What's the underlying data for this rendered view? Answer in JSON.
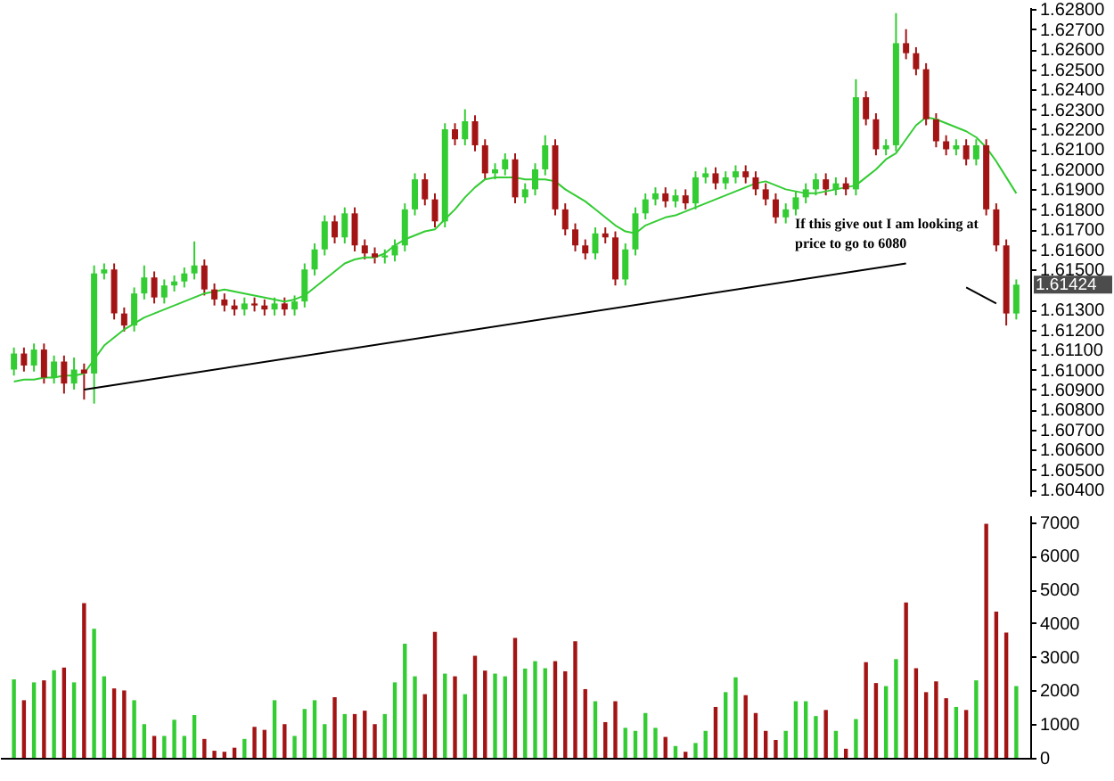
{
  "chart_data": [
    {
      "type": "candlestick",
      "tick_labels": "y",
      "categories": [
        null,
        null,
        null,
        null,
        null,
        null,
        null,
        null,
        null,
        null,
        null,
        null,
        null,
        null,
        null,
        null,
        null,
        null,
        null,
        null,
        null,
        null,
        null,
        null,
        null,
        null,
        null,
        null,
        null,
        null,
        null,
        null,
        null,
        null,
        null,
        null,
        null,
        null,
        null,
        null,
        null,
        null,
        null,
        null,
        null,
        null,
        null,
        null,
        null,
        null,
        null,
        null,
        null,
        null,
        null,
        null,
        null,
        null,
        null,
        null,
        null,
        null,
        null,
        null,
        null,
        null,
        null,
        null,
        null,
        null,
        null,
        null,
        null,
        null,
        null,
        null,
        null,
        null,
        null,
        null,
        null,
        null,
        null,
        null,
        null,
        null,
        null,
        null,
        null,
        null,
        null,
        null,
        null,
        null,
        null,
        null,
        null,
        null,
        null,
        null,
        null
      ],
      "ohlc": [
        [
          1.61,
          1.6111,
          1.6097,
          1.6108
        ],
        [
          1.6108,
          1.6111,
          1.6099,
          1.6102
        ],
        [
          1.6102,
          1.6113,
          1.6099,
          1.611
        ],
        [
          1.611,
          1.6113,
          1.6093,
          1.6096
        ],
        [
          1.6096,
          1.6107,
          1.6093,
          1.6104
        ],
        [
          1.6104,
          1.6107,
          1.6088,
          1.6093
        ],
        [
          1.6093,
          1.6106,
          1.609,
          1.61
        ],
        [
          1.61,
          1.6103,
          1.6085,
          1.6098
        ],
        [
          1.6098,
          1.6152,
          1.6083,
          1.6148
        ],
        [
          1.6148,
          1.6153,
          1.6145,
          1.615
        ],
        [
          1.615,
          1.6153,
          1.6125,
          1.6128
        ],
        [
          1.6128,
          1.6131,
          1.6119,
          1.6122
        ],
        [
          1.6122,
          1.6141,
          1.6119,
          1.6138
        ],
        [
          1.6138,
          1.6152,
          1.6135,
          1.6146
        ],
        [
          1.6146,
          1.6149,
          1.6133,
          1.6136
        ],
        [
          1.6136,
          1.6145,
          1.6133,
          1.6142
        ],
        [
          1.6142,
          1.6147,
          1.6139,
          1.6144
        ],
        [
          1.6144,
          1.6151,
          1.6141,
          1.6148
        ],
        [
          1.6148,
          1.6164,
          1.6145,
          1.6152
        ],
        [
          1.6152,
          1.6155,
          1.6137,
          1.614
        ],
        [
          1.614,
          1.6143,
          1.6132,
          1.6135
        ],
        [
          1.6135,
          1.6138,
          1.6129,
          1.6132
        ],
        [
          1.6132,
          1.6135,
          1.6127,
          1.613
        ],
        [
          1.613,
          1.6136,
          1.6127,
          1.6133
        ],
        [
          1.6133,
          1.6136,
          1.6129,
          1.6132
        ],
        [
          1.6132,
          1.6135,
          1.6127,
          1.613
        ],
        [
          1.613,
          1.6136,
          1.6127,
          1.6133
        ],
        [
          1.6133,
          1.6136,
          1.6127,
          1.613
        ],
        [
          1.613,
          1.6137,
          1.6127,
          1.6134
        ],
        [
          1.6134,
          1.6153,
          1.6131,
          1.615
        ],
        [
          1.615,
          1.6163,
          1.6147,
          1.616
        ],
        [
          1.616,
          1.6177,
          1.6157,
          1.6174
        ],
        [
          1.6174,
          1.6177,
          1.6163,
          1.6166
        ],
        [
          1.6166,
          1.6181,
          1.6163,
          1.6178
        ],
        [
          1.6178,
          1.6181,
          1.6159,
          1.6162
        ],
        [
          1.6162,
          1.6165,
          1.6155,
          1.6158
        ],
        [
          1.6158,
          1.6161,
          1.6153,
          1.6156
        ],
        [
          1.6156,
          1.616,
          1.6153,
          1.6157
        ],
        [
          1.6157,
          1.6165,
          1.6154,
          1.6162
        ],
        [
          1.6162,
          1.6183,
          1.6159,
          1.618
        ],
        [
          1.618,
          1.6198,
          1.6177,
          1.6195
        ],
        [
          1.6195,
          1.6198,
          1.6182,
          1.6185
        ],
        [
          1.6185,
          1.6188,
          1.6171,
          1.6174
        ],
        [
          1.6174,
          1.6223,
          1.6171,
          1.622
        ],
        [
          1.622,
          1.6223,
          1.6212,
          1.6215
        ],
        [
          1.6215,
          1.623,
          1.6212,
          1.6224
        ],
        [
          1.6224,
          1.6227,
          1.6209,
          1.6212
        ],
        [
          1.6212,
          1.6215,
          1.6195,
          1.6198
        ],
        [
          1.6198,
          1.6203,
          1.6195,
          1.62
        ],
        [
          1.62,
          1.6208,
          1.6197,
          1.6205
        ],
        [
          1.6205,
          1.6208,
          1.6183,
          1.6186
        ],
        [
          1.6186,
          1.6193,
          1.6183,
          1.619
        ],
        [
          1.619,
          1.6203,
          1.6187,
          1.62
        ],
        [
          1.62,
          1.6217,
          1.6197,
          1.6212
        ],
        [
          1.6212,
          1.6215,
          1.6177,
          1.618
        ],
        [
          1.618,
          1.6183,
          1.6167,
          1.617
        ],
        [
          1.617,
          1.6173,
          1.6159,
          1.6162
        ],
        [
          1.6162,
          1.6165,
          1.6155,
          1.6158
        ],
        [
          1.6158,
          1.6171,
          1.6155,
          1.6168
        ],
        [
          1.6168,
          1.6171,
          1.6163,
          1.6166
        ],
        [
          1.6166,
          1.6169,
          1.6142,
          1.6145
        ],
        [
          1.6145,
          1.6163,
          1.6142,
          1.616
        ],
        [
          1.616,
          1.6181,
          1.6157,
          1.6178
        ],
        [
          1.6178,
          1.6188,
          1.6175,
          1.6185
        ],
        [
          1.6185,
          1.6191,
          1.6182,
          1.6188
        ],
        [
          1.6188,
          1.6191,
          1.6181,
          1.6184
        ],
        [
          1.6184,
          1.619,
          1.6181,
          1.6187
        ],
        [
          1.6187,
          1.619,
          1.618,
          1.6183
        ],
        [
          1.6183,
          1.6199,
          1.618,
          1.6196
        ],
        [
          1.6196,
          1.6201,
          1.6193,
          1.6198
        ],
        [
          1.6198,
          1.6201,
          1.619,
          1.6193
        ],
        [
          1.6193,
          1.6199,
          1.619,
          1.6196
        ],
        [
          1.6196,
          1.6202,
          1.6193,
          1.6199
        ],
        [
          1.6199,
          1.6202,
          1.6193,
          1.6196
        ],
        [
          1.6196,
          1.6199,
          1.6187,
          1.619
        ],
        [
          1.619,
          1.6193,
          1.6182,
          1.6185
        ],
        [
          1.6185,
          1.6188,
          1.6173,
          1.6176
        ],
        [
          1.6176,
          1.6183,
          1.6173,
          1.618
        ],
        [
          1.618,
          1.6189,
          1.6177,
          1.6186
        ],
        [
          1.6186,
          1.6193,
          1.6183,
          1.619
        ],
        [
          1.619,
          1.6198,
          1.6187,
          1.6195
        ],
        [
          1.6195,
          1.6198,
          1.6187,
          1.619
        ],
        [
          1.619,
          1.6196,
          1.6187,
          1.6193
        ],
        [
          1.6193,
          1.6196,
          1.6187,
          1.619
        ],
        [
          1.619,
          1.6245,
          1.6187,
          1.6236
        ],
        [
          1.6236,
          1.6239,
          1.6222,
          1.6225
        ],
        [
          1.6225,
          1.6228,
          1.6207,
          1.621
        ],
        [
          1.621,
          1.6215,
          1.6207,
          1.6212
        ],
        [
          1.6212,
          1.6278,
          1.6209,
          1.6263
        ],
        [
          1.6263,
          1.627,
          1.6255,
          1.6258
        ],
        [
          1.6258,
          1.6261,
          1.6247,
          1.625
        ],
        [
          1.625,
          1.6253,
          1.6222,
          1.6225
        ],
        [
          1.6225,
          1.6228,
          1.6211,
          1.6214
        ],
        [
          1.6214,
          1.6217,
          1.6207,
          1.621
        ],
        [
          1.621,
          1.6215,
          1.6207,
          1.6212
        ],
        [
          1.6212,
          1.6215,
          1.6202,
          1.6205
        ],
        [
          1.6205,
          1.6215,
          1.6202,
          1.6212
        ],
        [
          1.6212,
          1.6215,
          1.6177,
          1.618
        ],
        [
          1.618,
          1.6183,
          1.6159,
          1.6162
        ],
        [
          1.6162,
          1.6165,
          1.6122,
          1.6128
        ],
        [
          1.6128,
          1.6145,
          1.6125,
          1.61424
        ]
      ],
      "colors": [
        "#33cc33",
        "#a31515",
        "#33cc33",
        "#a31515",
        "#33cc33",
        "#a31515",
        "#33cc33",
        "#a31515",
        "#33cc33",
        "#33cc33",
        "#a31515",
        "#a31515",
        "#33cc33",
        "#33cc33",
        "#a31515",
        "#33cc33",
        "#33cc33",
        "#33cc33",
        "#33cc33",
        "#a31515",
        "#a31515",
        "#a31515",
        "#a31515",
        "#33cc33",
        "#a31515",
        "#a31515",
        "#33cc33",
        "#a31515",
        "#33cc33",
        "#33cc33",
        "#33cc33",
        "#33cc33",
        "#a31515",
        "#33cc33",
        "#a31515",
        "#a31515",
        "#a31515",
        "#33cc33",
        "#33cc33",
        "#33cc33",
        "#33cc33",
        "#a31515",
        "#a31515",
        "#33cc33",
        "#a31515",
        "#33cc33",
        "#a31515",
        "#a31515",
        "#33cc33",
        "#33cc33",
        "#a31515",
        "#33cc33",
        "#33cc33",
        "#33cc33",
        "#a31515",
        "#a31515",
        "#a31515",
        "#a31515",
        "#33cc33",
        "#a31515",
        "#a31515",
        "#33cc33",
        "#33cc33",
        "#33cc33",
        "#33cc33",
        "#a31515",
        "#33cc33",
        "#a31515",
        "#33cc33",
        "#33cc33",
        "#a31515",
        "#33cc33",
        "#33cc33",
        "#a31515",
        "#a31515",
        "#a31515",
        "#a31515",
        "#33cc33",
        "#33cc33",
        "#33cc33",
        "#33cc33",
        "#a31515",
        "#33cc33",
        "#a31515",
        "#33cc33",
        "#a31515",
        "#a31515",
        "#33cc33",
        "#33cc33",
        "#a31515",
        "#a31515",
        "#a31515",
        "#a31515",
        "#a31515",
        "#33cc33",
        "#a31515",
        "#33cc33",
        "#a31515",
        "#a31515",
        "#a31515",
        "#33cc33"
      ],
      "series": [
        {
          "type": "line",
          "color": "#33cc33",
          "values": [
            1.6094,
            1.6095,
            1.6095,
            1.6096,
            1.6096,
            1.6097,
            1.6097,
            1.6098,
            1.6105,
            1.6112,
            1.6116,
            1.612,
            1.6123,
            1.6126,
            1.6128,
            1.613,
            1.6132,
            1.6134,
            1.6136,
            1.6138,
            1.6139,
            1.614,
            1.6139,
            1.6138,
            1.6137,
            1.6136,
            1.6135,
            1.6134,
            1.6135,
            1.6137,
            1.6141,
            1.6145,
            1.6149,
            1.6153,
            1.6155,
            1.6156,
            1.6156,
            1.6158,
            1.6162,
            1.6165,
            1.6167,
            1.6169,
            1.617,
            1.6175,
            1.618,
            1.6186,
            1.6191,
            1.6195,
            1.6196,
            1.6196,
            1.6196,
            1.6195,
            1.6195,
            1.6195,
            1.6194,
            1.619,
            1.6187,
            1.6184,
            1.618,
            1.6176,
            1.6172,
            1.6169,
            1.6168,
            1.6172,
            1.6174,
            1.6176,
            1.6177,
            1.6179,
            1.6181,
            1.6183,
            1.6185,
            1.6187,
            1.6189,
            1.6191,
            1.6193,
            1.6194,
            1.6192,
            1.619,
            1.6189,
            1.6188,
            1.6188,
            1.6189,
            1.619,
            1.6191,
            1.6192,
            1.6196,
            1.62,
            1.6205,
            1.6208,
            1.6215,
            1.6222,
            1.6226,
            1.6225,
            1.6223,
            1.6221,
            1.6219,
            1.6216,
            1.6211,
            1.6204,
            1.6196,
            1.6188
          ]
        },
        {
          "type": "line",
          "color": "#000000",
          "values": [
            null,
            null,
            null,
            null,
            null,
            null,
            null,
            1.609,
            null,
            null,
            null,
            null,
            null,
            null,
            null,
            null,
            null,
            null,
            null,
            null,
            null,
            null,
            null,
            null,
            null,
            null,
            null,
            null,
            null,
            null,
            null,
            null,
            null,
            null,
            null,
            null,
            null,
            null,
            null,
            null,
            null,
            null,
            null,
            null,
            null,
            null,
            null,
            null,
            null,
            null,
            null,
            null,
            null,
            null,
            null,
            null,
            null,
            null,
            null,
            null,
            null,
            null,
            null,
            null,
            null,
            null,
            null,
            null,
            null,
            null,
            null,
            null,
            null,
            null,
            null,
            null,
            null,
            null,
            null,
            null,
            null,
            null,
            null,
            null,
            null,
            null,
            null,
            null,
            null,
            1.6153,
            null,
            null,
            null,
            null,
            null,
            null,
            null,
            null,
            null,
            null,
            null
          ]
        },
        {
          "type": "line",
          "color": "#000000",
          "values": [
            null,
            null,
            null,
            null,
            null,
            null,
            null,
            null,
            null,
            null,
            null,
            null,
            null,
            null,
            null,
            null,
            null,
            null,
            null,
            null,
            null,
            null,
            null,
            null,
            null,
            null,
            null,
            null,
            null,
            null,
            null,
            null,
            null,
            null,
            null,
            null,
            null,
            null,
            null,
            null,
            null,
            null,
            null,
            null,
            null,
            null,
            null,
            null,
            null,
            null,
            null,
            null,
            null,
            null,
            null,
            null,
            null,
            null,
            null,
            null,
            null,
            null,
            null,
            null,
            null,
            null,
            null,
            null,
            null,
            null,
            null,
            null,
            null,
            null,
            null,
            null,
            null,
            null,
            null,
            null,
            null,
            null,
            null,
            null,
            null,
            null,
            null,
            null,
            null,
            null,
            null,
            null,
            null,
            null,
            null,
            1.6141,
            null,
            null,
            1.6133,
            null,
            null
          ]
        }
      ],
      "ylim": [
        1.6037,
        1.6281
      ],
      "yticks": [
        {
          "value": 1.604,
          "label": "1.60400"
        },
        {
          "value": 1.605,
          "label": "1.60500"
        },
        {
          "value": 1.606,
          "label": "1.60600"
        },
        {
          "value": 1.607,
          "label": "1.60700"
        },
        {
          "value": 1.608,
          "label": "1.60800"
        },
        {
          "value": 1.609,
          "label": "1.60900"
        },
        {
          "value": 1.61,
          "label": "1.61000"
        },
        {
          "value": 1.611,
          "label": "1.61100"
        },
        {
          "value": 1.612,
          "label": "1.61200"
        },
        {
          "value": 1.613,
          "label": "1.61300"
        },
        {
          "value": 1.615,
          "label": "1.61500"
        },
        {
          "value": 1.616,
          "label": "1.61600"
        },
        {
          "value": 1.617,
          "label": "1.61700"
        },
        {
          "value": 1.618,
          "label": "1.61800"
        },
        {
          "value": 1.619,
          "label": "1.61900"
        },
        {
          "value": 1.62,
          "label": "1.62000"
        },
        {
          "value": 1.621,
          "label": "1.62100"
        },
        {
          "value": 1.622,
          "label": "1.62200"
        },
        {
          "value": 1.623,
          "label": "1.62300"
        },
        {
          "value": 1.624,
          "label": "1.62400"
        },
        {
          "value": 1.625,
          "label": "1.62500"
        },
        {
          "value": 1.626,
          "label": "1.62600"
        },
        {
          "value": 1.627,
          "label": "1.62700"
        },
        {
          "value": 1.628,
          "label": "1.62800"
        }
      ],
      "annotations": [
        "If this give out I am looking at price to go to 6080",
        "1.61424"
      ]
    },
    {
      "type": "bar",
      "tick_labels": "y",
      "categories": [
        null,
        null,
        null,
        null,
        null,
        null,
        null,
        null,
        null,
        null,
        null,
        null,
        null,
        null,
        null,
        null,
        null,
        null,
        null,
        null,
        null,
        null,
        null,
        null,
        null,
        null,
        null,
        null,
        null,
        null,
        null,
        null,
        null,
        null,
        null,
        null,
        null,
        null,
        null,
        null,
        null,
        null,
        null,
        null,
        null,
        null,
        null,
        null,
        null,
        null,
        null,
        null,
        null,
        null,
        null,
        null,
        null,
        null,
        null,
        null,
        null,
        null,
        null,
        null,
        null,
        null,
        null,
        null,
        null,
        null,
        null,
        null,
        null,
        null,
        null,
        null,
        null,
        null,
        null,
        null,
        null,
        null,
        null,
        null,
        null,
        null,
        null,
        null,
        null,
        null,
        null,
        null,
        null,
        null,
        null,
        null,
        null,
        null,
        null,
        null,
        null
      ],
      "values": [
        2330,
        1710,
        2240,
        2300,
        2600,
        2680,
        2240,
        4590,
        3830,
        2420,
        2060,
        2000,
        1710,
        1000,
        650,
        650,
        1130,
        650,
        1270,
        560,
        210,
        180,
        300,
        560,
        920,
        830,
        1710,
        1000,
        650,
        1450,
        1710,
        1000,
        1800,
        1300,
        1300,
        1400,
        1000,
        1300,
        2240,
        3390,
        2420,
        1890,
        3740,
        2500,
        2420,
        1890,
        3030,
        2590,
        2500,
        2420,
        3560,
        2650,
        2870,
        2660,
        2870,
        2570,
        3460,
        2040,
        1680,
        1060,
        1680,
        890,
        800,
        1330,
        890,
        620,
        350,
        180,
        440,
        800,
        1510,
        1950,
        2390,
        1860,
        1330,
        800,
        530,
        800,
        1680,
        1680,
        1240,
        1420,
        800,
        270,
        1150,
        2840,
        2220,
        2130,
        2930,
        4610,
        2660,
        1950,
        2270,
        1770,
        1510,
        1420,
        2300,
        6950,
        4340,
        3720,
        2130
      ],
      "colors": [
        "#33cc33",
        "#a31515",
        "#33cc33",
        "#a31515",
        "#33cc33",
        "#a31515",
        "#33cc33",
        "#a31515",
        "#33cc33",
        "#33cc33",
        "#a31515",
        "#a31515",
        "#33cc33",
        "#33cc33",
        "#a31515",
        "#33cc33",
        "#33cc33",
        "#33cc33",
        "#33cc33",
        "#a31515",
        "#a31515",
        "#a31515",
        "#a31515",
        "#33cc33",
        "#a31515",
        "#a31515",
        "#33cc33",
        "#a31515",
        "#33cc33",
        "#33cc33",
        "#33cc33",
        "#33cc33",
        "#a31515",
        "#33cc33",
        "#a31515",
        "#a31515",
        "#a31515",
        "#33cc33",
        "#33cc33",
        "#33cc33",
        "#33cc33",
        "#a31515",
        "#a31515",
        "#33cc33",
        "#a31515",
        "#33cc33",
        "#a31515",
        "#a31515",
        "#33cc33",
        "#33cc33",
        "#a31515",
        "#33cc33",
        "#33cc33",
        "#33cc33",
        "#a31515",
        "#a31515",
        "#a31515",
        "#a31515",
        "#33cc33",
        "#a31515",
        "#a31515",
        "#33cc33",
        "#33cc33",
        "#33cc33",
        "#33cc33",
        "#a31515",
        "#33cc33",
        "#a31515",
        "#33cc33",
        "#33cc33",
        "#a31515",
        "#33cc33",
        "#33cc33",
        "#a31515",
        "#a31515",
        "#a31515",
        "#a31515",
        "#33cc33",
        "#33cc33",
        "#33cc33",
        "#33cc33",
        "#a31515",
        "#33cc33",
        "#a31515",
        "#33cc33",
        "#a31515",
        "#a31515",
        "#33cc33",
        "#33cc33",
        "#a31515",
        "#a31515",
        "#a31515",
        "#a31515",
        "#a31515",
        "#33cc33",
        "#a31515",
        "#33cc33",
        "#a31515",
        "#a31515",
        "#a31515",
        "#33cc33"
      ],
      "ylim": [
        0,
        7200
      ],
      "yticks": [
        0,
        1000,
        2000,
        3000,
        4000,
        5000,
        6000,
        7000
      ]
    }
  ]
}
